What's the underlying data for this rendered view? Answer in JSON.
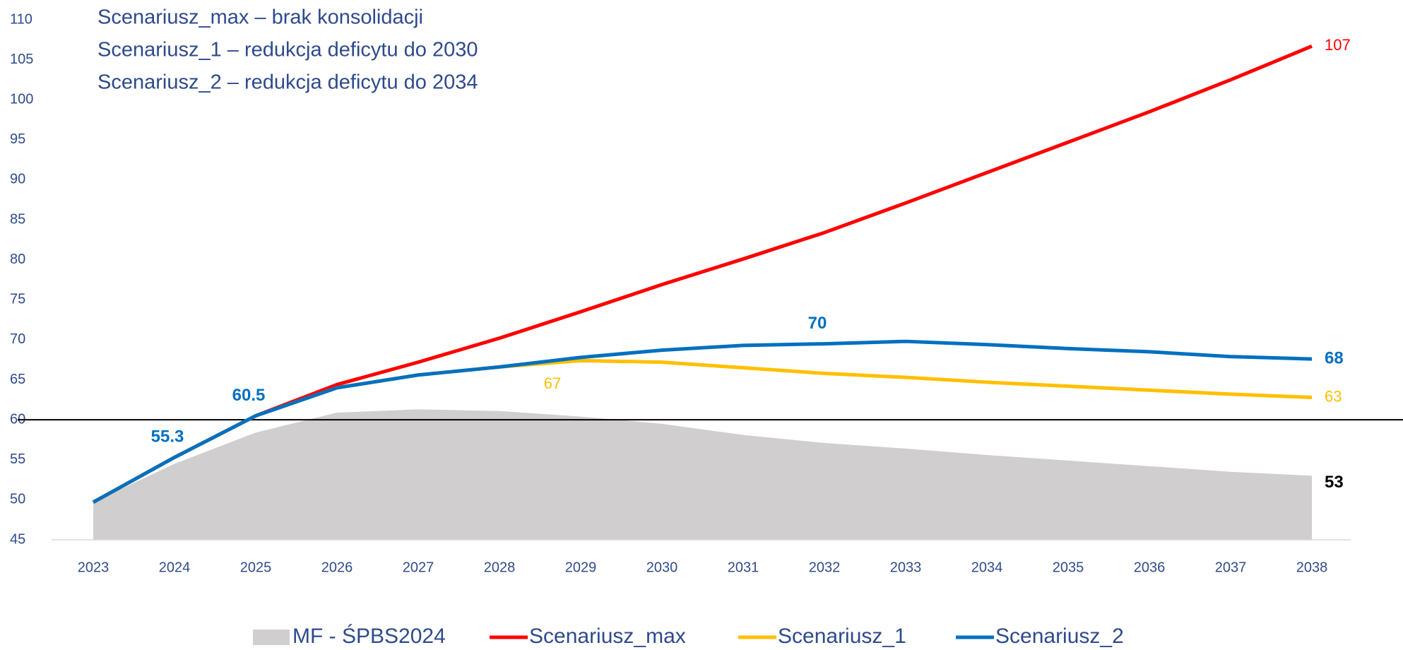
{
  "chart_data": {
    "type": "line",
    "annotations": [
      "Scenariusz_max – brak konsolidacji",
      "Scenariusz_1 – redukcja deficytu do 2030",
      "Scenariusz_2 – redukcja deficytu do 2034"
    ],
    "categories": [
      "2023",
      "2024",
      "2025",
      "2026",
      "2027",
      "2028",
      "2029",
      "2030",
      "2031",
      "2032",
      "2033",
      "2034",
      "2035",
      "2036",
      "2037",
      "2038"
    ],
    "series": [
      {
        "name": "MF - ŚPBS2024",
        "kind": "area",
        "color": "#d0cece",
        "label_color": "#000000",
        "values": [
          49.7,
          54.5,
          58.4,
          60.9,
          61.3,
          61.1,
          60.4,
          59.5,
          58.1,
          57.1,
          56.4,
          55.6,
          54.9,
          54.2,
          53.5,
          53.0
        ],
        "value_labels": [
          null,
          null,
          null,
          null,
          null,
          null,
          null,
          null,
          null,
          null,
          null,
          null,
          null,
          null,
          null,
          "53"
        ]
      },
      {
        "name": "Scenariusz_max",
        "kind": "line",
        "color": "#ff0000",
        "label_color": "#ff0000",
        "values": [
          49.7,
          55.3,
          60.5,
          64.4,
          67.2,
          70.2,
          73.5,
          76.9,
          80.1,
          83.4,
          87.1,
          90.9,
          94.7,
          98.5,
          102.5,
          106.7
        ],
        "value_labels": [
          null,
          null,
          null,
          null,
          null,
          null,
          null,
          null,
          null,
          null,
          null,
          null,
          null,
          null,
          null,
          "107"
        ]
      },
      {
        "name": "Scenariusz_1",
        "kind": "line",
        "color": "#ffc000",
        "label_color": "#ffc000",
        "values": [
          49.7,
          55.3,
          60.5,
          64.0,
          65.6,
          66.6,
          67.4,
          67.2,
          66.5,
          65.8,
          65.3,
          64.7,
          64.2,
          63.7,
          63.2,
          62.8
        ],
        "value_labels": [
          null,
          null,
          null,
          null,
          null,
          null,
          "67",
          null,
          null,
          null,
          null,
          null,
          null,
          null,
          null,
          "63"
        ]
      },
      {
        "name": "Scenariusz_2",
        "kind": "line",
        "color": "#0070c0",
        "label_color": "#0070c0",
        "values": [
          49.7,
          55.3,
          60.5,
          64.0,
          65.6,
          66.6,
          67.8,
          68.7,
          69.3,
          69.5,
          69.8,
          69.4,
          68.9,
          68.5,
          67.9,
          67.6
        ],
        "value_labels": [
          null,
          "55.3",
          "60.5",
          null,
          null,
          null,
          null,
          null,
          null,
          "70",
          null,
          null,
          null,
          null,
          null,
          "68"
        ]
      }
    ],
    "ylim": [
      45,
      110
    ],
    "yticks": [
      45,
      50,
      55,
      60,
      65,
      70,
      75,
      80,
      85,
      90,
      95,
      100,
      105,
      110
    ],
    "reference_line": 60,
    "legend": "bottom"
  }
}
